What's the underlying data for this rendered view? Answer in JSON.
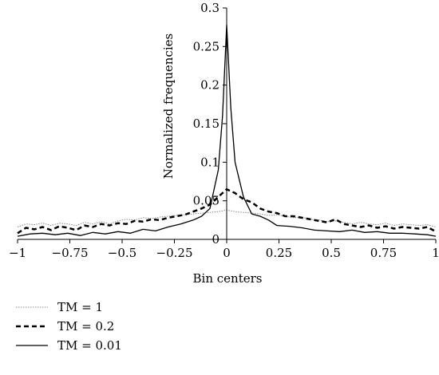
{
  "chart_data": {
    "type": "line",
    "title": "",
    "xlabel": "Bin centers",
    "ylabel": "Normalized frequencies",
    "xlim": [
      -1,
      1
    ],
    "ylim": [
      0,
      0.3
    ],
    "x_ticks": [
      -1,
      -0.75,
      -0.5,
      -0.25,
      0,
      0.25,
      0.5,
      0.75,
      1
    ],
    "x_tick_labels": [
      "−1",
      "−0.75",
      "−0.5",
      "−0.25",
      "0",
      "0.25",
      "0.5",
      "0.75",
      "1"
    ],
    "y_ticks": [
      0,
      0.05,
      0.1,
      0.15,
      0.2,
      0.25,
      0.3
    ],
    "y_tick_labels": [
      "0",
      "0.05",
      "0.1",
      "0.15",
      "0.2",
      "0.25",
      "0.3"
    ],
    "grid": false,
    "legend_position": "bottom-left",
    "series": [
      {
        "name": "TM = 1",
        "line_style": "dotted",
        "color": "#888888",
        "x": [
          -1,
          -0.96,
          -0.92,
          -0.88,
          -0.84,
          -0.8,
          -0.76,
          -0.72,
          -0.68,
          -0.64,
          -0.6,
          -0.56,
          -0.52,
          -0.48,
          -0.44,
          -0.4,
          -0.36,
          -0.32,
          -0.28,
          -0.24,
          -0.2,
          -0.16,
          -0.12,
          -0.08,
          -0.04,
          0,
          0.04,
          0.08,
          0.12,
          0.16,
          0.2,
          0.24,
          0.28,
          0.32,
          0.36,
          0.4,
          0.44,
          0.48,
          0.52,
          0.56,
          0.6,
          0.64,
          0.68,
          0.72,
          0.76,
          0.8,
          0.84,
          0.88,
          0.92,
          0.96,
          1
        ],
        "y": [
          0.016,
          0.02,
          0.019,
          0.021,
          0.018,
          0.021,
          0.02,
          0.018,
          0.022,
          0.02,
          0.023,
          0.02,
          0.024,
          0.026,
          0.025,
          0.028,
          0.027,
          0.029,
          0.03,
          0.031,
          0.032,
          0.033,
          0.034,
          0.035,
          0.036,
          0.038,
          0.036,
          0.035,
          0.034,
          0.033,
          0.031,
          0.032,
          0.03,
          0.028,
          0.029,
          0.026,
          0.025,
          0.023,
          0.024,
          0.022,
          0.02,
          0.022,
          0.02,
          0.019,
          0.021,
          0.018,
          0.02,
          0.019,
          0.018,
          0.019,
          0.016
        ]
      },
      {
        "name": "TM = 0.2",
        "line_style": "dashed",
        "color": "#000000",
        "x": [
          -1,
          -0.96,
          -0.92,
          -0.88,
          -0.84,
          -0.8,
          -0.76,
          -0.72,
          -0.68,
          -0.64,
          -0.6,
          -0.56,
          -0.52,
          -0.48,
          -0.44,
          -0.4,
          -0.36,
          -0.32,
          -0.28,
          -0.24,
          -0.2,
          -0.16,
          -0.12,
          -0.08,
          -0.04,
          0,
          0.04,
          0.08,
          0.12,
          0.16,
          0.2,
          0.24,
          0.28,
          0.32,
          0.36,
          0.4,
          0.44,
          0.48,
          0.52,
          0.56,
          0.6,
          0.64,
          0.68,
          0.72,
          0.76,
          0.8,
          0.84,
          0.88,
          0.92,
          0.96,
          1
        ],
        "y": [
          0.008,
          0.015,
          0.013,
          0.016,
          0.012,
          0.017,
          0.015,
          0.012,
          0.018,
          0.016,
          0.02,
          0.018,
          0.021,
          0.02,
          0.024,
          0.023,
          0.026,
          0.025,
          0.028,
          0.03,
          0.032,
          0.036,
          0.04,
          0.045,
          0.055,
          0.065,
          0.06,
          0.052,
          0.048,
          0.04,
          0.036,
          0.034,
          0.03,
          0.03,
          0.028,
          0.026,
          0.024,
          0.022,
          0.026,
          0.02,
          0.018,
          0.016,
          0.018,
          0.015,
          0.017,
          0.014,
          0.016,
          0.015,
          0.014,
          0.016,
          0.01
        ]
      },
      {
        "name": "TM = 0.01",
        "line_style": "solid",
        "color": "#000000",
        "x": [
          -1,
          -0.94,
          -0.88,
          -0.82,
          -0.76,
          -0.7,
          -0.64,
          -0.58,
          -0.52,
          -0.46,
          -0.4,
          -0.34,
          -0.28,
          -0.22,
          -0.16,
          -0.12,
          -0.08,
          -0.04,
          -0.02,
          0,
          0.02,
          0.04,
          0.08,
          0.12,
          0.16,
          0.2,
          0.24,
          0.3,
          0.36,
          0.42,
          0.48,
          0.54,
          0.6,
          0.66,
          0.72,
          0.78,
          0.84,
          0.9,
          0.96,
          1
        ],
        "y": [
          0.004,
          0.007,
          0.008,
          0.006,
          0.008,
          0.005,
          0.009,
          0.007,
          0.01,
          0.008,
          0.013,
          0.011,
          0.016,
          0.02,
          0.025,
          0.03,
          0.04,
          0.09,
          0.16,
          0.278,
          0.17,
          0.1,
          0.055,
          0.033,
          0.03,
          0.025,
          0.018,
          0.017,
          0.015,
          0.012,
          0.011,
          0.01,
          0.012,
          0.009,
          0.01,
          0.008,
          0.008,
          0.007,
          0.006,
          0.004
        ]
      }
    ]
  }
}
